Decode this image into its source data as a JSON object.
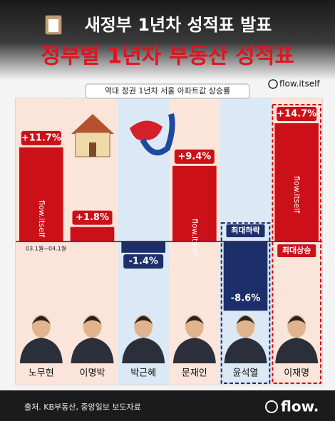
{
  "chart_data": {
    "type": "bar",
    "header": "새정부 1년차 성적표 발표",
    "title": "정부별 1년차 부동산 성적표",
    "subtitle": "역대 정권 1년차 서울 아파트값 상승률",
    "handle": "flow.itself",
    "period_note": "03.1월~04.1월",
    "categories": [
      "노무현",
      "이명박",
      "박근혜",
      "문재인",
      "윤석열",
      "이재명"
    ],
    "values": [
      11.7,
      1.8,
      -1.4,
      9.4,
      -8.6,
      14.7
    ],
    "value_labels": [
      "+11.7%",
      "+1.8%",
      "-1.4%",
      "+9.4%",
      "-8.6%",
      "+14.7%"
    ],
    "positive_color": "#cc1018",
    "negative_color": "#1d2f6b",
    "annotations": [
      {
        "category": 4,
        "text": "최대하락"
      },
      {
        "category": 5,
        "text": "최대상승"
      }
    ],
    "source": "출처. KB부동산, 중앙일보 보도자료",
    "logo": "flow."
  }
}
